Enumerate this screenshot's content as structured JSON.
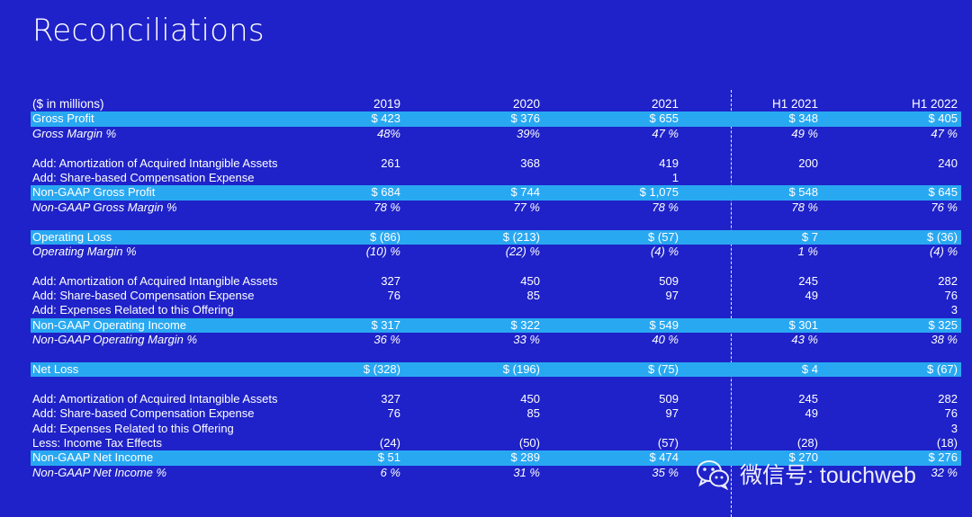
{
  "title": "Reconciliations",
  "header": {
    "units": "($ in millions)",
    "columns": [
      "2019",
      "2020",
      "2021",
      "H1 2021",
      "H1 2022"
    ]
  },
  "rows": [
    {
      "label": "Gross Profit",
      "values": [
        "$ 423",
        "$ 376",
        "$ 655",
        "$ 348",
        "$ 405"
      ],
      "style": "hl"
    },
    {
      "label": "Gross Margin %",
      "values": [
        "48%",
        "39%",
        "47 %",
        "49 %",
        "47 %"
      ],
      "style": "it"
    },
    {
      "label": "",
      "values": [
        "",
        "",
        "",
        "",
        ""
      ],
      "style": "gap"
    },
    {
      "label": "Add: Amortization of Acquired Intangible Assets",
      "values": [
        "261",
        "368",
        "419",
        "200",
        "240"
      ],
      "style": ""
    },
    {
      "label": "Add: Share-based Compensation Expense",
      "values": [
        "",
        "",
        "1",
        "",
        ""
      ],
      "style": ""
    },
    {
      "label": "Non-GAAP Gross Profit",
      "values": [
        "$ 684",
        "$ 744",
        "$ 1,075",
        "$ 548",
        "$ 645"
      ],
      "style": "hl"
    },
    {
      "label": "Non-GAAP Gross Margin %",
      "values": [
        "78 %",
        "77 %",
        "78 %",
        "78 %",
        "76 %"
      ],
      "style": "it"
    },
    {
      "label": "",
      "values": [
        "",
        "",
        "",
        "",
        ""
      ],
      "style": "gap"
    },
    {
      "label": "Operating Loss",
      "values": [
        "$ (86)",
        "$ (213)",
        "$ (57)",
        "$ 7",
        "$ (36)"
      ],
      "style": "hl"
    },
    {
      "label": "Operating Margin %",
      "values": [
        "(10) %",
        "(22) %",
        "(4) %",
        "1 %",
        "(4) %"
      ],
      "style": "it"
    },
    {
      "label": "",
      "values": [
        "",
        "",
        "",
        "",
        ""
      ],
      "style": "gap"
    },
    {
      "label": "Add: Amortization of Acquired Intangible Assets",
      "values": [
        "327",
        "450",
        "509",
        "245",
        "282"
      ],
      "style": ""
    },
    {
      "label": "Add: Share-based Compensation Expense",
      "values": [
        "76",
        "85",
        "97",
        "49",
        "76"
      ],
      "style": ""
    },
    {
      "label": "Add: Expenses Related to this Offering",
      "values": [
        "",
        "",
        "",
        "",
        "3"
      ],
      "style": ""
    },
    {
      "label": "Non-GAAP Operating Income",
      "values": [
        "$ 317",
        "$ 322",
        "$ 549",
        "$ 301",
        "$ 325"
      ],
      "style": "hl"
    },
    {
      "label": "Non-GAAP Operating Margin %",
      "values": [
        "36 %",
        "33 %",
        "40 %",
        "43 %",
        "38 %"
      ],
      "style": "it"
    },
    {
      "label": "",
      "values": [
        "",
        "",
        "",
        "",
        ""
      ],
      "style": "gap"
    },
    {
      "label": "Net Loss",
      "values": [
        "$ (328)",
        "$ (196)",
        "$ (75)",
        "$ 4",
        "$ (67)"
      ],
      "style": "hl"
    },
    {
      "label": "",
      "values": [
        "",
        "",
        "",
        "",
        ""
      ],
      "style": "gap"
    },
    {
      "label": "Add: Amortization of Acquired Intangible Assets",
      "values": [
        "327",
        "450",
        "509",
        "245",
        "282"
      ],
      "style": ""
    },
    {
      "label": "Add: Share-based Compensation Expense",
      "values": [
        "76",
        "85",
        "97",
        "49",
        "76"
      ],
      "style": ""
    },
    {
      "label": "Add: Expenses Related to this Offering",
      "values": [
        "",
        "",
        "",
        "",
        "3"
      ],
      "style": ""
    },
    {
      "label": "Less: Income Tax Effects",
      "values": [
        "(24)",
        "(50)",
        "(57)",
        "(28)",
        "(18)"
      ],
      "style": ""
    },
    {
      "label": "Non-GAAP Net Income",
      "values": [
        "$ 51",
        "$ 289",
        "$ 474",
        "$ 270",
        "$ 276"
      ],
      "style": "hl"
    },
    {
      "label": "Non-GAAP Net Income %",
      "values": [
        "6 %",
        "31 %",
        "35 %",
        "",
        "32 %"
      ],
      "style": "it"
    }
  ],
  "watermark": {
    "text": "微信号: touchweb",
    "icon": "wechat-icon"
  },
  "colors": {
    "background": "#1f22c8",
    "highlight": "#29a8f2"
  }
}
